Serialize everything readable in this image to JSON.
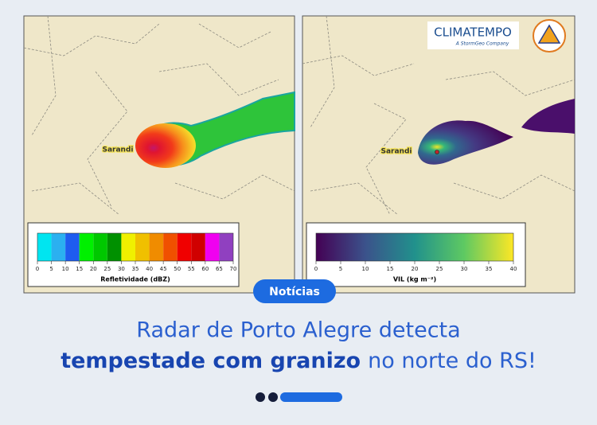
{
  "logo": {
    "name": "CLIMATEMPO",
    "tagline": "A StormGeo Company"
  },
  "maps": [
    {
      "place_label": "Sarandi",
      "colorbar": {
        "label": "Refletividade (dBZ)",
        "ticks": [
          0,
          5,
          10,
          15,
          20,
          25,
          30,
          35,
          40,
          45,
          50,
          55,
          60,
          65,
          70
        ]
      }
    },
    {
      "place_label": "Sarandi",
      "colorbar": {
        "label": "VIL (kg m⁻²)",
        "ticks": [
          0,
          5,
          10,
          15,
          20,
          25,
          30,
          35,
          40
        ]
      }
    }
  ],
  "badge": "Notícias",
  "headline": {
    "line1": "Radar de Porto Alegre detecta",
    "bold": "tempestade com granizo",
    "rest": "no norte do RS!"
  }
}
